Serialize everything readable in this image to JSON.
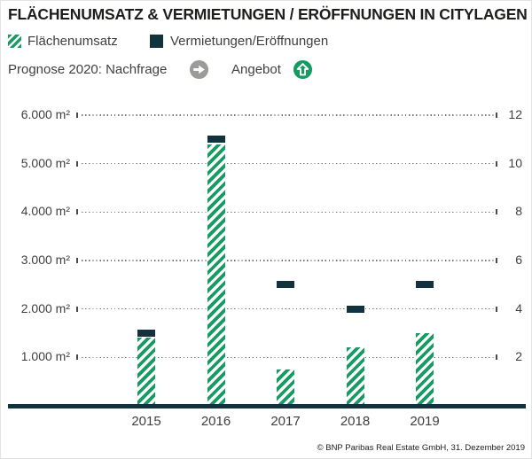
{
  "title": "FLÄCHENUMSATZ & VERMIETUNGEN / ERÖFFNUNGEN IN CITYLAGEN",
  "legend": {
    "series1": "Flächenumsatz",
    "series2": "Vermietungen/Eröffnungen"
  },
  "prognose": {
    "label": "Prognose 2020: Nachfrage",
    "demand_icon": "arrow-right-circle",
    "supply_label": "Angebot",
    "supply_icon": "arrow-up-circle"
  },
  "footer": "© BNP Paribas Real Estate GmbH, 31. Dezember 2019",
  "colors": {
    "green": "#169b62",
    "dark_teal": "#12333e",
    "gray_icon": "#9b9b9a",
    "text": "#3f3f3e"
  },
  "chart_data": {
    "type": "bar",
    "categories": [
      "2015",
      "2016",
      "2017",
      "2018",
      "2019"
    ],
    "series": [
      {
        "name": "Flächenumsatz",
        "axis": "left",
        "unit": "m²",
        "values": [
          1400,
          5400,
          750,
          1200,
          1500
        ]
      },
      {
        "name": "Vermietungen/Eröffnungen",
        "axis": "right",
        "unit": "Anzahl",
        "values": [
          3,
          11,
          5,
          4,
          5
        ]
      }
    ],
    "left_axis": {
      "ticks": [
        "6.000 m²",
        "5.000 m²",
        "4.000 m²",
        "3.000 m²",
        "2.000 m²",
        "1.000 m²"
      ],
      "tick_values": [
        6000,
        5000,
        4000,
        3000,
        2000,
        1000
      ],
      "range": [
        0,
        6000
      ]
    },
    "right_axis": {
      "ticks": [
        "12",
        "10",
        "8",
        "6",
        "4",
        "2"
      ],
      "tick_values": [
        12,
        10,
        8,
        6,
        4,
        2
      ],
      "range": [
        0,
        12
      ]
    },
    "grid": "dotted-horizontal",
    "legend_position": "top"
  }
}
